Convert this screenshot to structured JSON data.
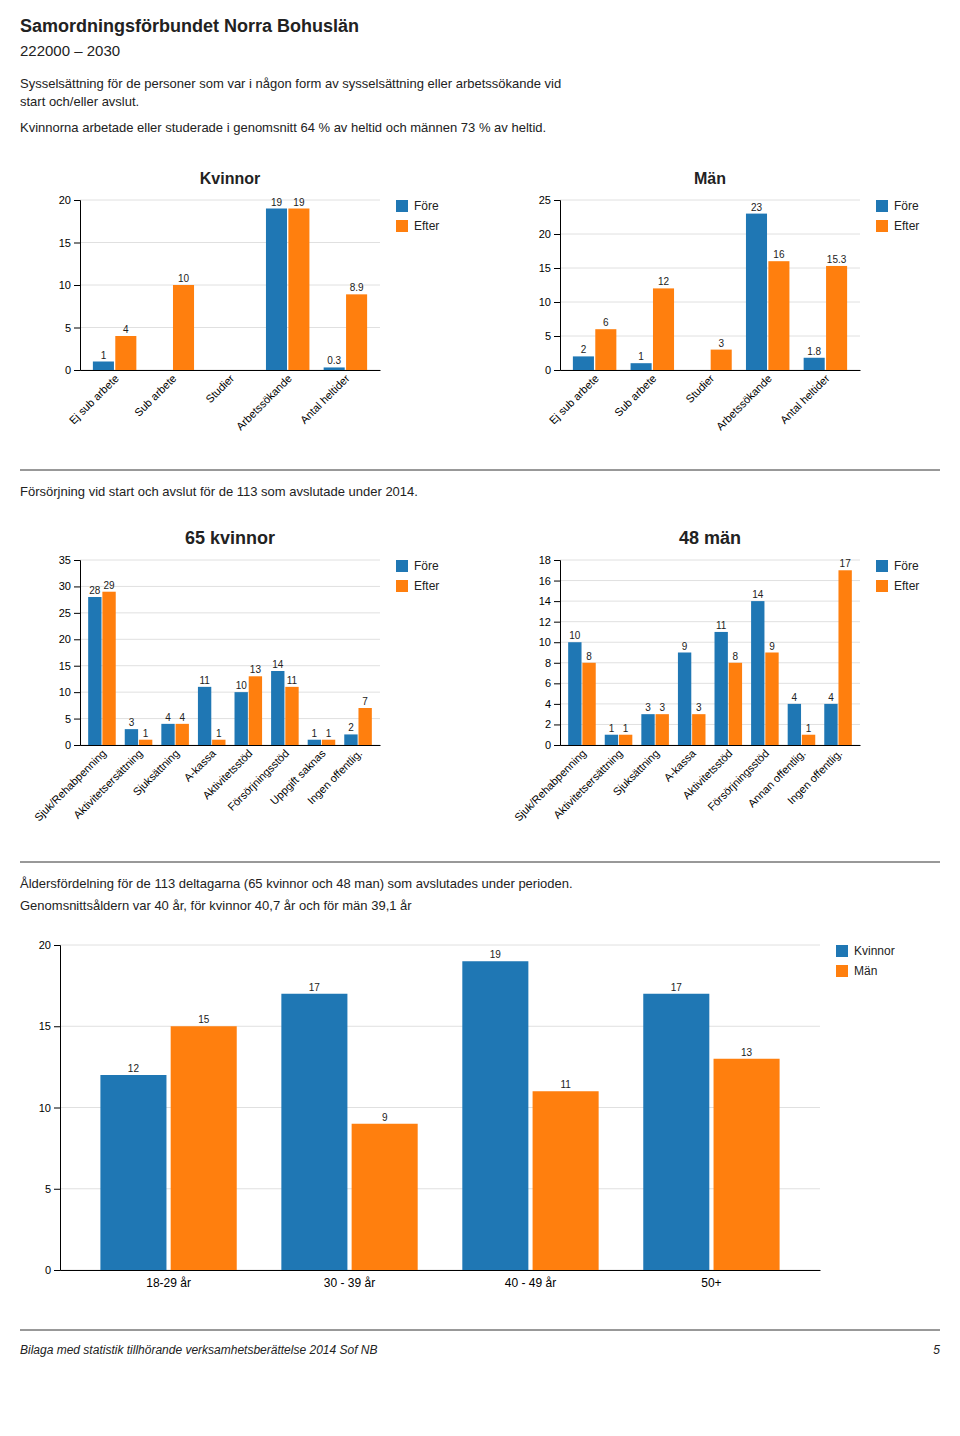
{
  "page_title": "Samordningsförbundet Norra Bohuslän",
  "page_subtitle": "222000 – 2030",
  "intro": [
    "Sysselsättning för de personer som var i någon form av sysselsättning eller arbetssökande vid",
    "start och/eller avslut.",
    "Kvinnorna arbetade eller studerade i genomsnitt 64 % av heltid och männen 73 % av heltid."
  ],
  "section_texts": [
    [
      "Försörjning vid start och avslut för de 113 som avslutade under 2014."
    ],
    [
      "Åldersfördelning för de 113 deltagarna (65 kvinnor och 48 man) som avslutades under perioden.",
      "Genomsnittsåldern var 40 år, för kvinnor 40,7 år och för män 39,1 år"
    ]
  ],
  "footer": {
    "text": "Bilaga med statistik tillhörande verksamhetsberättelse 2014 Sof NB",
    "page": "5"
  },
  "chart_data": [
    {
      "type": "bar",
      "title": "Kvinnor",
      "categories": [
        "Ej sub arbete",
        "Sub arbete",
        "Studier",
        "Arbetssökande",
        "Antal heltider"
      ],
      "series": [
        {
          "name": "Före",
          "values": [
            1,
            0,
            0,
            19,
            0.3
          ],
          "value_labels": [
            "1",
            null,
            null,
            "19",
            "0.3"
          ]
        },
        {
          "name": "Efter",
          "values": [
            4,
            10,
            0,
            19,
            8.9
          ],
          "value_labels": [
            "4",
            "10",
            null,
            "19",
            "8.9"
          ]
        }
      ],
      "ylim": [
        0,
        20
      ],
      "yticks": [
        0,
        5,
        10,
        15,
        20
      ],
      "grid": true,
      "legend": "right",
      "data_labels": true
    },
    {
      "type": "bar",
      "title": "Män",
      "categories": [
        "Ej sub arbete",
        "Sub arbete",
        "Studier",
        "Arbetssökande",
        "Antal heltider"
      ],
      "series": [
        {
          "name": "Före",
          "values": [
            2,
            1,
            0,
            23,
            1.8
          ],
          "value_labels": [
            "2",
            "1",
            null,
            "23",
            "1.8"
          ]
        },
        {
          "name": "Efter",
          "values": [
            6,
            12,
            3,
            16,
            15.3
          ]
        }
      ],
      "ylim": [
        0,
        25
      ],
      "yticks": [
        0,
        5,
        10,
        15,
        20,
        25
      ],
      "grid": true,
      "legend": "right",
      "data_labels": true
    },
    {
      "type": "bar",
      "title": "65 kvinnor",
      "categories": [
        "Sjuk/Rehabpenning",
        "Aktivitetsersättning",
        "Sjuksättning",
        "A-kassa",
        "Aktivitetsstöd",
        "Försörjningsstöd",
        "Uppgift saknas",
        "Ingen offentlig."
      ],
      "series": [
        {
          "name": "Före",
          "values": [
            28,
            3,
            4,
            11,
            10,
            14,
            1,
            2
          ]
        },
        {
          "name": "Efter",
          "values": [
            29,
            1,
            4,
            1,
            13,
            11,
            1,
            7
          ]
        }
      ],
      "ylim": [
        0,
        35
      ],
      "yticks": [
        0,
        5,
        10,
        15,
        20,
        25,
        30,
        35
      ],
      "grid": true,
      "legend": "right",
      "data_labels": true
    },
    {
      "type": "bar",
      "title": "48 män",
      "categories": [
        "Sjuk/Rehabpenning",
        "Aktivitetsersättning",
        "Sjuksättning",
        "A-kassa",
        "Aktivitetsstöd",
        "Försörjningsstöd",
        "Annan offentlig.",
        "Ingen offentlig."
      ],
      "series": [
        {
          "name": "Före",
          "values": [
            10,
            1,
            3,
            9,
            11,
            14,
            4,
            4
          ]
        },
        {
          "name": "Efter",
          "values": [
            8,
            1,
            3,
            3,
            8,
            9,
            1,
            17
          ]
        }
      ],
      "ylim": [
        0,
        18
      ],
      "yticks": [
        0,
        2,
        4,
        6,
        8,
        10,
        12,
        14,
        16,
        18
      ],
      "grid": true,
      "legend": "right",
      "data_labels": true
    },
    {
      "type": "bar",
      "categories": [
        "18-29 år",
        "30 - 39 år",
        "40 - 49 år",
        "50+"
      ],
      "series": [
        {
          "name": "Kvinnor",
          "values": [
            12,
            17,
            19,
            17
          ]
        },
        {
          "name": "Män",
          "values": [
            15,
            9,
            11,
            13
          ]
        }
      ],
      "ylim": [
        0,
        20
      ],
      "yticks": [
        0,
        5,
        10,
        15,
        20
      ],
      "grid": true,
      "legend": "right",
      "data_labels": true
    }
  ]
}
